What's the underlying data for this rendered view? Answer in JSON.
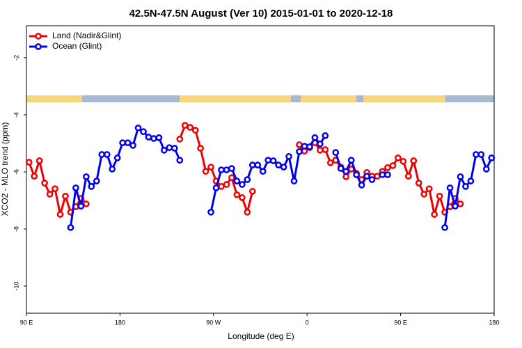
{
  "chart_data": {
    "type": "line",
    "title": "42.5N-47.5N August (Ver 10)   2015-01-01 to 2020-12-18",
    "x_label": "Longitude (deg E)",
    "y_label": "XCO2 - MLO trend (ppm)",
    "legend": "topleft",
    "xlim": [
      90,
      540
    ],
    "xticks": [
      {
        "value": 90,
        "label": "90 E"
      },
      180,
      {
        "value": 270,
        "label": "90 W"
      },
      {
        "value": 360,
        "label": "0"
      },
      {
        "value": 450,
        "label": "90 E"
      },
      180
    ],
    "ylim": [
      -10.95,
      -0.88
    ],
    "yticks": [
      -2,
      -4,
      -6,
      -8,
      -10
    ],
    "x": [
      92.5,
      97.5,
      102.5,
      107.5,
      112.5,
      117.5,
      122.5,
      127.5,
      132.5,
      137.5,
      142.5,
      147.5,
      152.5,
      157.5,
      162.5,
      167.5,
      172.5,
      177.5,
      182.5,
      187.5,
      192.5,
      197.5,
      202.5,
      207.5,
      212.5,
      217.5,
      222.5,
      227.5,
      232.5,
      237.5,
      242.5,
      247.5,
      252.5,
      257.5,
      262.5,
      267.5,
      272.5,
      277.5,
      282.5,
      287.5,
      292.5,
      297.5,
      302.5,
      307.5,
      312.5,
      317.5,
      322.5,
      327.5,
      332.5,
      337.5,
      342.5,
      347.5,
      352.5,
      357.5,
      362.5,
      367.5,
      372.5,
      377.5,
      382.5,
      387.5,
      392.5,
      397.5,
      402.5,
      407.5,
      412.5,
      417.5,
      422.5,
      427.5,
      432.5,
      437.5,
      442.5,
      447.5,
      452.5,
      457.5,
      462.5,
      467.5,
      472.5,
      477.5,
      482.5,
      487.5,
      492.5,
      497.5,
      502.5,
      507.5,
      512.5,
      517.5,
      522.5,
      527.5,
      532.5,
      537.5
    ],
    "series": [
      {
        "name": "Land (Nadir&Glint)",
        "color": "#ee0000",
        "values": [
          -5.66,
          -6.15,
          -5.61,
          -6.39,
          -6.78,
          -6.59,
          -7.49,
          -6.85,
          -7.41,
          -7.22,
          -6.93,
          -7.12,
          null,
          null,
          null,
          null,
          null,
          null,
          null,
          null,
          null,
          null,
          null,
          null,
          null,
          null,
          null,
          null,
          null,
          -4.85,
          -4.37,
          -4.44,
          -4.54,
          -5.17,
          -5.98,
          -5.83,
          -6.32,
          -6.51,
          -6.44,
          -6.2,
          -6.8,
          -6.9,
          -7.41,
          -6.68,
          null,
          null,
          null,
          null,
          null,
          null,
          null,
          null,
          -5.05,
          -5.27,
          -5.15,
          -4.98,
          -5.24,
          -5.22,
          -5.68,
          -5.59,
          -5.83,
          -6.17,
          -5.9,
          -6.05,
          -6.27,
          -6.02,
          -6.15,
          -6.15,
          -5.98,
          -5.85,
          -5.78,
          -5.51,
          -5.63,
          -6.15,
          -5.61,
          -6.39,
          -6.78,
          -6.59,
          -7.49,
          -6.85,
          -7.41,
          -7.22,
          -6.93,
          -7.12,
          null,
          null,
          null,
          null,
          null,
          null
        ]
      },
      {
        "name": "Ocean (Glint)",
        "color": "#0000ee",
        "values": [
          null,
          null,
          null,
          null,
          null,
          null,
          null,
          null,
          -7.95,
          -6.56,
          -7.2,
          -6.17,
          -6.51,
          -6.32,
          -5.39,
          -5.39,
          -5.9,
          -5.51,
          -4.98,
          -4.98,
          -5.07,
          -4.46,
          -4.59,
          -4.78,
          -4.83,
          -4.8,
          -5.24,
          -5.15,
          -5.17,
          -5.59,
          null,
          null,
          null,
          null,
          null,
          -7.41,
          -6.56,
          -5.93,
          -5.93,
          -5.88,
          -6.32,
          -6.44,
          -6.27,
          -5.76,
          -5.76,
          -5.98,
          -5.59,
          -5.61,
          -5.76,
          -5.83,
          -5.46,
          -6.32,
          -5.29,
          -5.1,
          -5.12,
          -4.8,
          -5.02,
          -4.73,
          null,
          -5.32,
          -5.88,
          -5.98,
          -5.59,
          -6.1,
          -6.46,
          -6.15,
          -6.27,
          null,
          -6.1,
          -6.1,
          null,
          null,
          null,
          null,
          null,
          null,
          null,
          null,
          null,
          null,
          -7.95,
          -6.56,
          -7.2,
          -6.17,
          -6.51,
          -6.32,
          -5.39,
          -5.39,
          -5.9,
          -5.51
        ]
      }
    ]
  }
}
